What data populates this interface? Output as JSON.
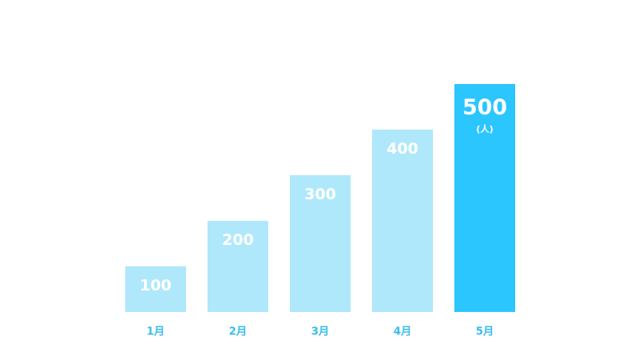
{
  "chart_data": {
    "type": "bar",
    "categories": [
      "1月",
      "2月",
      "3月",
      "4月",
      "5月"
    ],
    "values": [
      100,
      200,
      300,
      400,
      500
    ],
    "colors": [
      "#b0e8fb",
      "#b0e8fb",
      "#b0e8fb",
      "#b0e8fb",
      "#2bc6fe"
    ],
    "unit": "(人)",
    "ylim": [
      0,
      500
    ]
  }
}
